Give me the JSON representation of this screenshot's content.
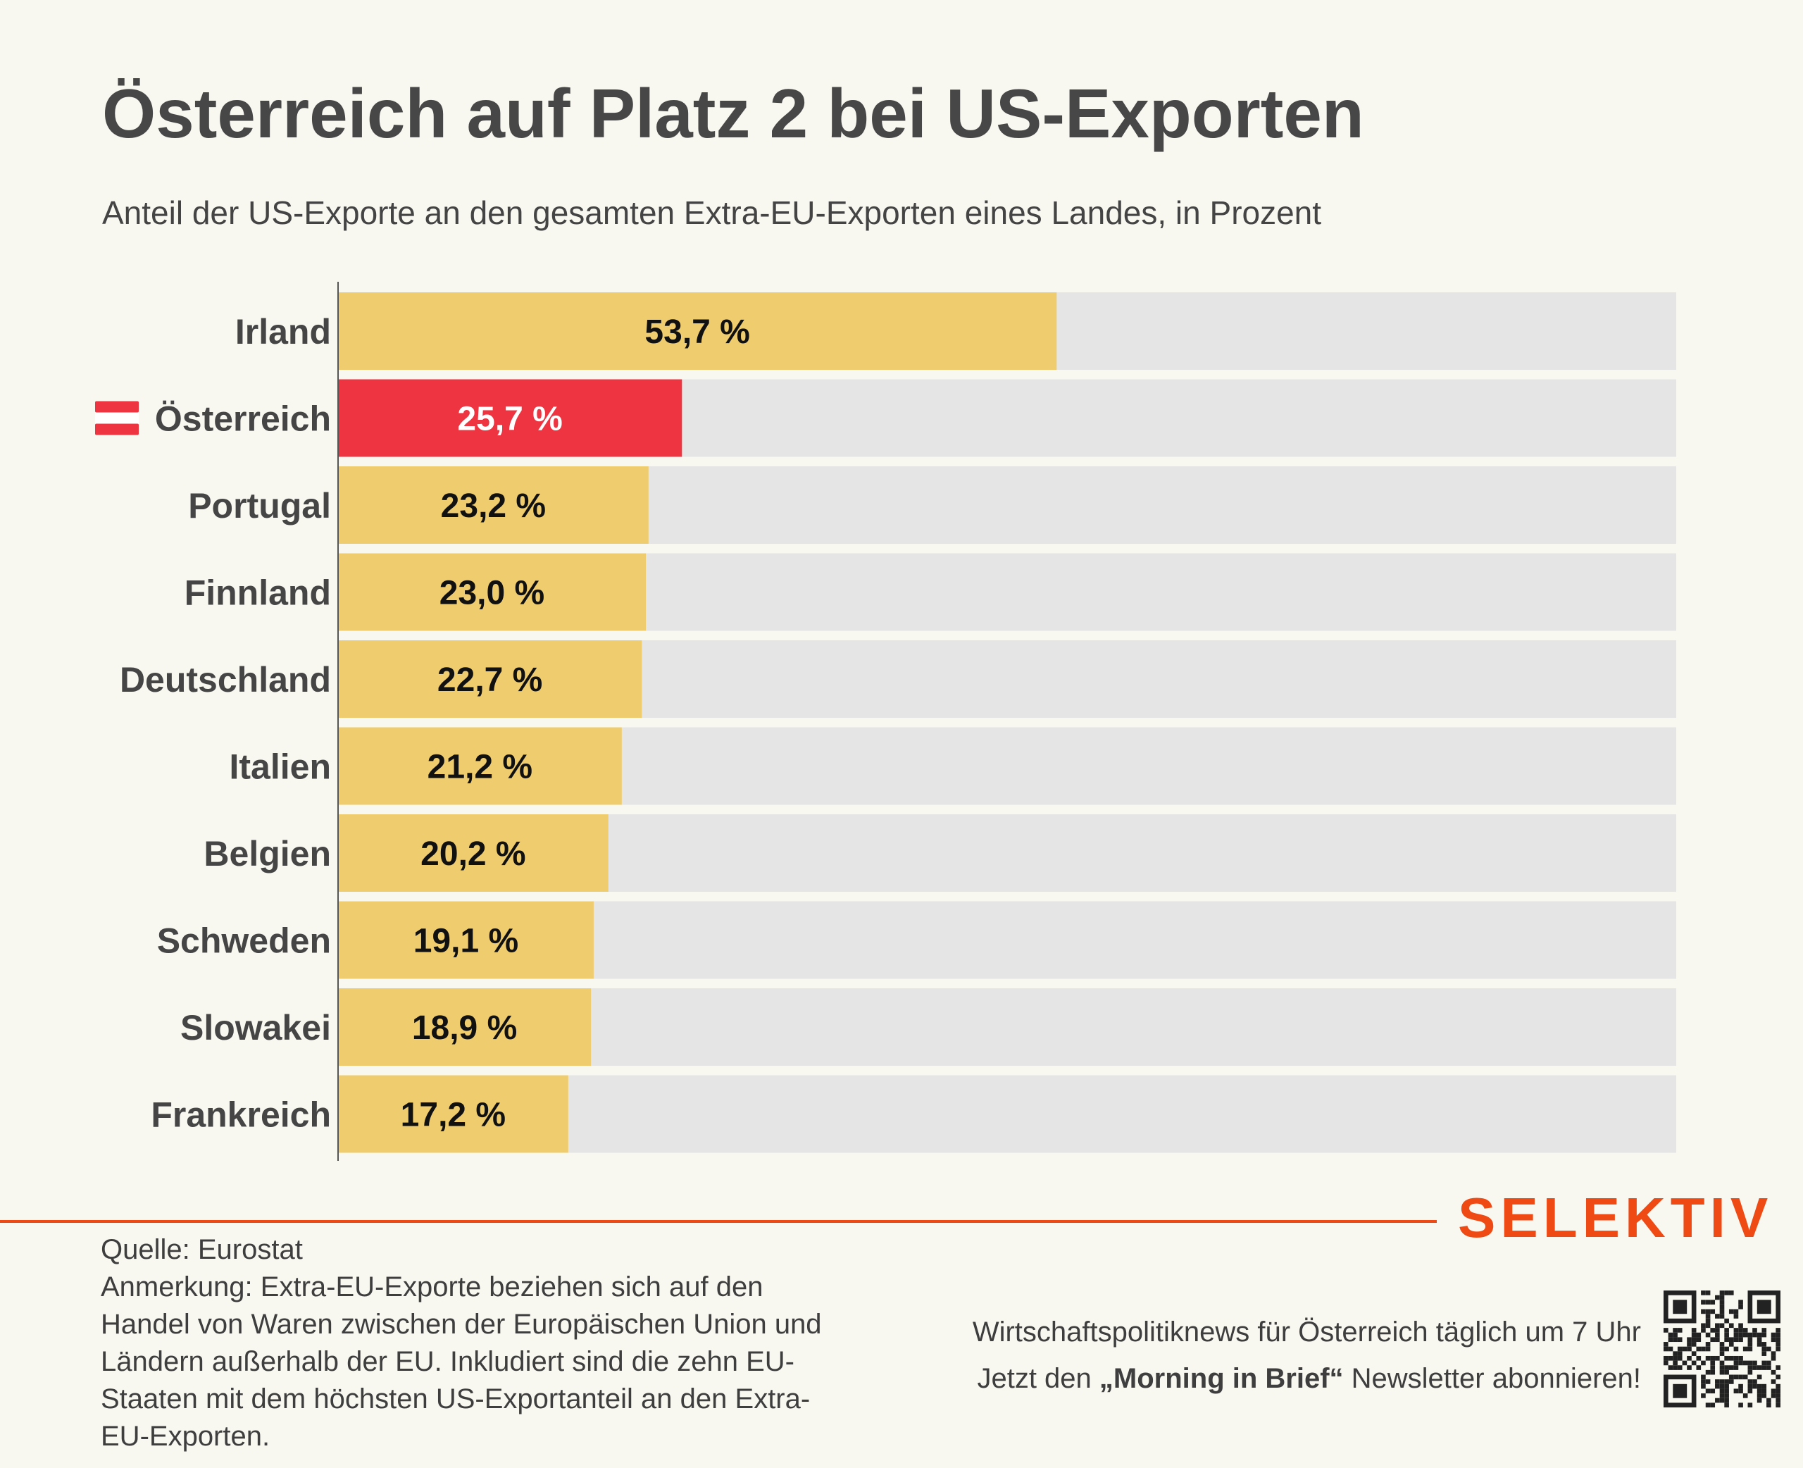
{
  "title": "Österreich auf Platz 2 bei US-Exporten",
  "subtitle": "Anteil der US-Exporte an den gesamten Extra-EU-Exporten eines Landes, in Prozent",
  "colors": {
    "bar_default": "#efcc6e",
    "bar_highlight": "#ee3440",
    "track": "#e5e5e5",
    "brand": "#f04a14"
  },
  "chart_data": {
    "type": "bar",
    "orientation": "horizontal",
    "categories": [
      "Irland",
      "Österreich",
      "Portugal",
      "Finnland",
      "Deutschland",
      "Italien",
      "Belgien",
      "Schweden",
      "Slowakei",
      "Frankreich"
    ],
    "values": [
      53.7,
      25.7,
      23.2,
      23.0,
      22.7,
      21.2,
      20.2,
      19.1,
      18.9,
      17.2
    ],
    "value_labels": [
      "53,7 %",
      "25,7 %",
      "23,2 %",
      "23,0 %",
      "22,7 %",
      "21,2 %",
      "20,2 %",
      "19,1 %",
      "18,9 %",
      "17,2 %"
    ],
    "highlight": "Österreich",
    "highlight_icon": "austria-flag-icon",
    "xlim": [
      0,
      100
    ],
    "grid": false
  },
  "footer": {
    "source": "Quelle: Eurostat",
    "note": "Anmerkung: Extra-EU-Exporte beziehen sich auf den Handel von Waren zwischen der Europäischen Union und Ländern außerhalb der EU. Inkludiert sind die zehn EU-Staaten mit dem höchsten US-Exportanteil an den Extra-EU-Exporten.",
    "brand": "SELEKTIV",
    "promo_line1": "Wirtschaftspolitiknews für Österreich täglich um 7 Uhr",
    "promo_line2_pre": "Jetzt den ",
    "promo_line2_bold": "„Morning in Brief“",
    "promo_line2_post": " Newsletter abonnieren!",
    "qr_icon": "qr-code-icon"
  }
}
